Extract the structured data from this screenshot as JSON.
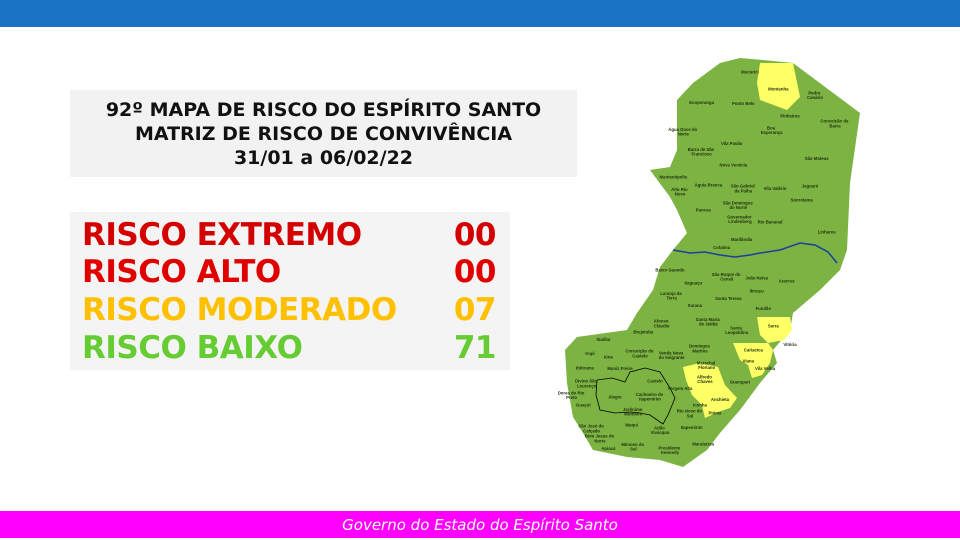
{
  "header": {
    "color": "#1a73c4"
  },
  "title": {
    "line1": "92º MAPA DE RISCO DO ESPÍRITO SANTO",
    "line2": "MATRIZ DE RISCO DE CONVIVÊNCIA",
    "line3": "31/01 a 06/02/22"
  },
  "risk_levels": [
    {
      "label": "RISCO EXTREMO",
      "count": "00",
      "color": "#d40000"
    },
    {
      "label": "RISCO ALTO",
      "count": "00",
      "color": "#e00000"
    },
    {
      "label": "RISCO MODERADO",
      "count": "07",
      "color": "#ffc000"
    },
    {
      "label": "RISCO BAIXO",
      "count": "71",
      "color": "#66cc33"
    }
  ],
  "map": {
    "low_risk_color": "#7cb342",
    "moderate_risk_color": "#ffff66",
    "river_color": "#1a3fa0",
    "moderate_municipalities": [
      "Montanha",
      "Serra",
      "Cariacica",
      "Vila Velha",
      "Alfredo Chaves",
      "Anchieta",
      "Piúma"
    ],
    "labels": [
      "Mucurici",
      "Montanha",
      "Pedro Canário",
      "Ecoporanga",
      "Ponto Belo",
      "Pinheiros",
      "Conceição da Barra",
      "Boa Esperança",
      "Água Doce do Norte",
      "Vila Pavão",
      "Barra de São Francisco",
      "São Mateus",
      "Nova Venécia",
      "Mantenópolis",
      "Águia Branca",
      "São Gabriel da Palha",
      "Vila Valério",
      "Jaguaré",
      "Alto Rio Novo",
      "São Domingos do Norte",
      "Sooretama",
      "Pancas",
      "Governador Lindenberg",
      "Rio Bananal",
      "Linhares",
      "Marilândia",
      "Colatina",
      "Baixo Guandu",
      "São Roque do Canaã",
      "João Neiva",
      "Aracruz",
      "Itaguaçu",
      "Ibiraçu",
      "Laranja da Terra",
      "Santa Teresa",
      "Itarana",
      "Fundão",
      "Afonso Cláudio",
      "Santa Maria de Jetibá",
      "Serra",
      "Santa Leopoldina",
      "Brejetuba",
      "Vitória",
      "Ibatiba",
      "Domingos Martins",
      "Cariacica",
      "Iúna",
      "Irupi",
      "Conceição do Castelo",
      "Venda Nova do Imigrante",
      "Viana",
      "Ibitirama",
      "Muniz Freire",
      "Marechal Floriano",
      "Vila Velha",
      "Alfredo Chaves",
      "Castelo",
      "Guarapari",
      "Divino São Lourenço",
      "Dores do Rio Preto",
      "Alegre",
      "Vargem Alta",
      "Cachoeiro de Itapemirim",
      "Anchieta",
      "Guaçuí",
      "Iconha",
      "Jerônimo Monteiro",
      "Rio Novo do Sul",
      "Piúma",
      "Muqui",
      "Itapemirim",
      "Atílio Vivácqua",
      "São José do Calçado",
      "Bom Jesus do Norte",
      "Apiacá",
      "Mimoso do Sul",
      "Presidente Kennedy",
      "Marataízes"
    ]
  },
  "footer": {
    "text": "Governo do Estado do Espírito Santo",
    "color": "#ff00ff"
  }
}
